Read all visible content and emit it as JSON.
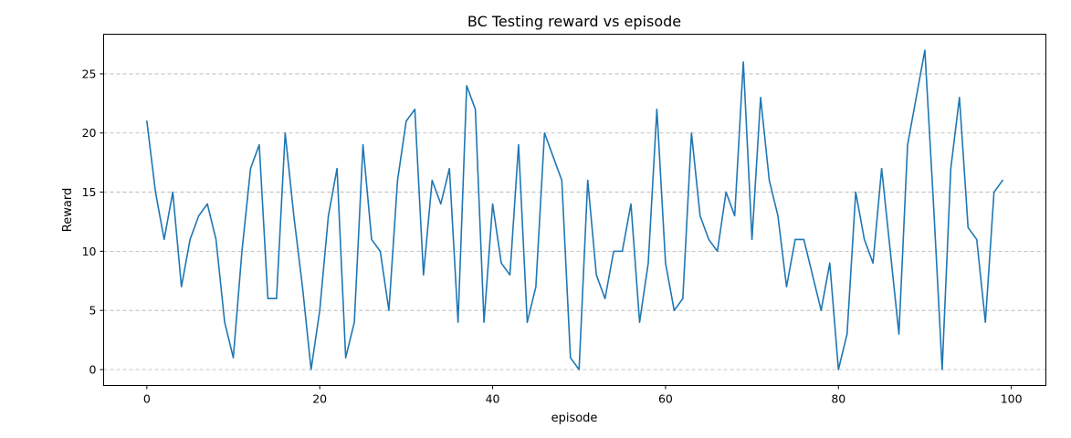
{
  "chart_data": {
    "type": "line",
    "title": "BC Testing reward vs episode",
    "xlabel": "episode",
    "ylabel": "Reward",
    "xlim": [
      -5,
      104
    ],
    "ylim": [
      -1.35,
      28.35
    ],
    "xticks": [
      0,
      20,
      40,
      60,
      80,
      100
    ],
    "yticks": [
      0,
      5,
      10,
      15,
      20,
      25
    ],
    "grid": "y-only dashed",
    "series": [
      {
        "color": "#1f77b4",
        "x": [
          0,
          1,
          2,
          3,
          4,
          5,
          6,
          7,
          8,
          9,
          10,
          11,
          12,
          13,
          14,
          15,
          16,
          17,
          18,
          19,
          20,
          21,
          22,
          23,
          24,
          25,
          26,
          27,
          28,
          29,
          30,
          31,
          32,
          33,
          34,
          35,
          36,
          37,
          38,
          39,
          40,
          41,
          42,
          43,
          44,
          45,
          46,
          47,
          48,
          49,
          50,
          51,
          52,
          53,
          54,
          55,
          56,
          57,
          58,
          59,
          60,
          61,
          62,
          63,
          64,
          65,
          66,
          67,
          68,
          69,
          70,
          71,
          72,
          73,
          74,
          75,
          76,
          77,
          78,
          79,
          80,
          81,
          82,
          83,
          84,
          85,
          86,
          87,
          88,
          89,
          90,
          91,
          92,
          93,
          94,
          95,
          96,
          97,
          98,
          99
        ],
        "values": [
          21,
          15,
          11,
          15,
          7,
          11,
          13,
          14,
          11,
          4,
          1,
          10,
          17,
          19,
          6,
          6,
          20,
          13,
          7,
          0,
          5,
          13,
          17,
          1,
          4,
          19,
          11,
          10,
          5,
          16,
          21,
          22,
          8,
          16,
          14,
          17,
          4,
          24,
          22,
          4,
          14,
          9,
          8,
          19,
          4,
          7,
          20,
          18,
          16,
          1,
          0,
          16,
          8,
          6,
          10,
          10,
          14,
          4,
          9,
          22,
          9,
          5,
          6,
          20,
          13,
          11,
          10,
          15,
          13,
          26,
          11,
          23,
          16,
          13,
          7,
          11,
          11,
          8,
          5,
          9,
          0,
          3,
          15,
          11,
          9,
          17,
          10,
          3,
          19,
          23,
          27,
          14,
          0,
          17,
          23,
          12,
          11,
          4,
          15,
          16
        ]
      }
    ]
  }
}
